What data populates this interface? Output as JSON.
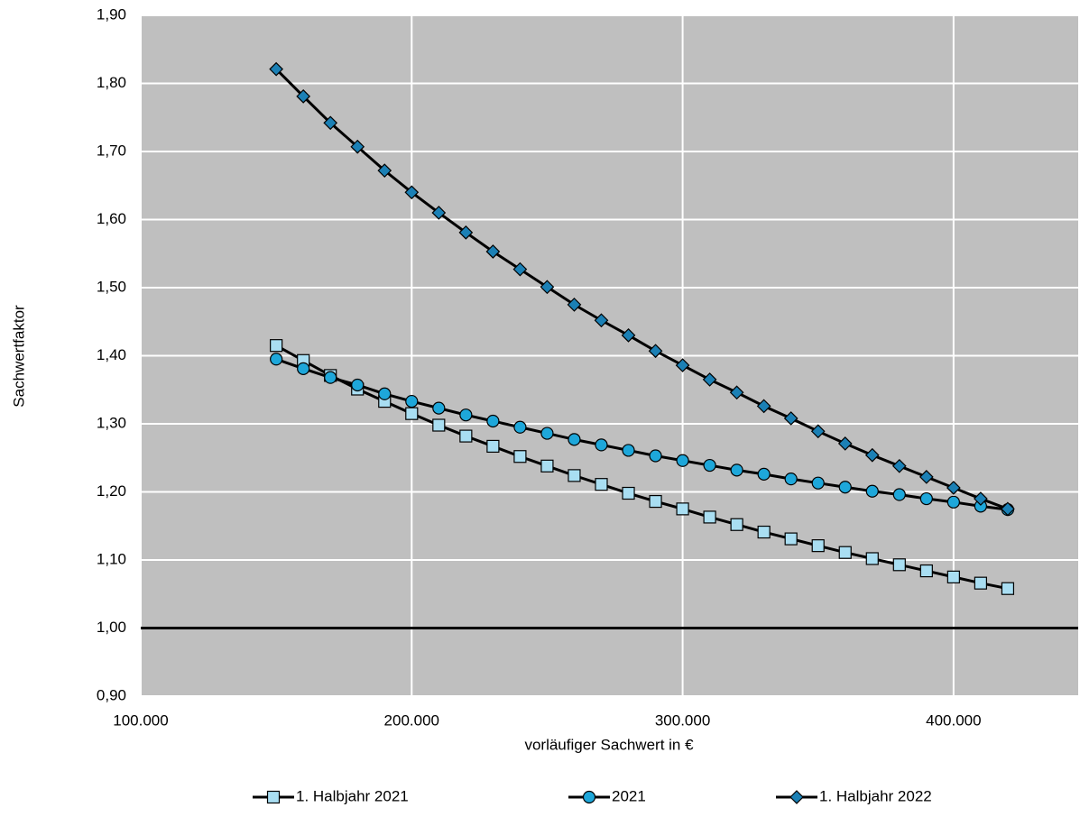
{
  "chart_data": {
    "type": "line",
    "x_label": "vorläufiger Sachwert in €",
    "y_label": "Sachwertfaktor",
    "x": [
      150000,
      160000,
      170000,
      180000,
      190000,
      200000,
      210000,
      220000,
      230000,
      240000,
      250000,
      260000,
      270000,
      280000,
      290000,
      300000,
      310000,
      320000,
      330000,
      340000,
      350000,
      360000,
      370000,
      380000,
      390000,
      400000,
      410000,
      420000
    ],
    "series": [
      {
        "name": "1. Halbjahr 2021",
        "color": "#a9def2",
        "marker": "square",
        "values": [
          1.415,
          1.393,
          1.371,
          1.351,
          1.333,
          1.315,
          1.298,
          1.282,
          1.267,
          1.252,
          1.238,
          1.224,
          1.211,
          1.198,
          1.186,
          1.175,
          1.163,
          1.152,
          1.141,
          1.131,
          1.121,
          1.111,
          1.102,
          1.093,
          1.084,
          1.075,
          1.066,
          1.058
        ]
      },
      {
        "name": "2021",
        "color": "#1ea7da",
        "marker": "circle",
        "values": [
          1.395,
          1.381,
          1.368,
          1.357,
          1.344,
          1.333,
          1.323,
          1.313,
          1.304,
          1.295,
          1.286,
          1.277,
          1.269,
          1.261,
          1.253,
          1.246,
          1.239,
          1.232,
          1.226,
          1.219,
          1.213,
          1.207,
          1.201,
          1.196,
          1.19,
          1.185,
          1.179,
          1.174
        ]
      },
      {
        "name": "1. Halbjahr 2022",
        "color": "#1b80b5",
        "marker": "diamond",
        "values": [
          1.821,
          1.781,
          1.742,
          1.707,
          1.672,
          1.64,
          1.61,
          1.581,
          1.553,
          1.527,
          1.501,
          1.475,
          1.452,
          1.43,
          1.407,
          1.386,
          1.365,
          1.346,
          1.326,
          1.308,
          1.289,
          1.271,
          1.254,
          1.238,
          1.222,
          1.206,
          1.19,
          1.175
        ]
      }
    ],
    "xlim": [
      100000,
      446000
    ],
    "xticks": [
      {
        "value": 100000,
        "label": "100.000"
      },
      {
        "value": 200000,
        "label": "200.000"
      },
      {
        "value": 300000,
        "label": "300.000"
      },
      {
        "value": 400000,
        "label": "400.000"
      }
    ],
    "ylim": [
      0.9,
      1.9
    ],
    "yticks": [
      {
        "value": 0.9,
        "label": "0,90"
      },
      {
        "value": 1.0,
        "label": "1,00"
      },
      {
        "value": 1.1,
        "label": "1,10"
      },
      {
        "value": 1.2,
        "label": "1,20"
      },
      {
        "value": 1.3,
        "label": "1,30"
      },
      {
        "value": 1.4,
        "label": "1,40"
      },
      {
        "value": 1.5,
        "label": "1,50"
      },
      {
        "value": 1.6,
        "label": "1,60"
      },
      {
        "value": 1.7,
        "label": "1,70"
      },
      {
        "value": 1.8,
        "label": "1,80"
      },
      {
        "value": 1.9,
        "label": "1,90"
      }
    ],
    "reference_line": 1.0,
    "grid": true,
    "legend": "bottom"
  }
}
